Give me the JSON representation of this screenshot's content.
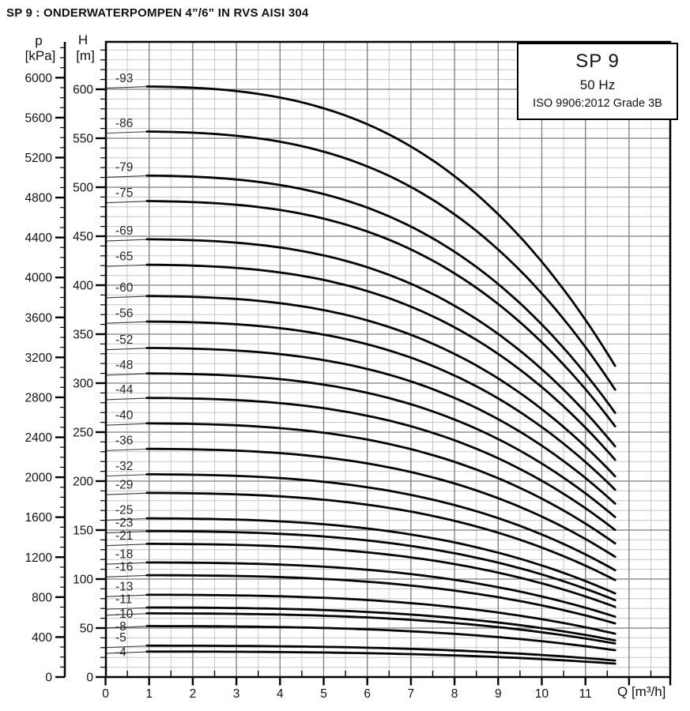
{
  "page": {
    "title": "SP 9 : ONDERWATERPOMPEN 4”/6” IN RVS AISI 304"
  },
  "chart_data": {
    "type": "line",
    "title": "SP 9 : ONDERWATERPOMPEN 4”/6” IN RVS AISI 304",
    "legend_box": {
      "model": "SP 9",
      "frequency": "50 Hz",
      "standard": "ISO 9906:2012 Grade 3B"
    },
    "x_axis": {
      "name": "Q",
      "unit_label": "Q [m³/h]",
      "tick_labels": [
        0,
        1,
        2,
        3,
        4,
        5,
        6,
        7,
        8,
        9,
        10,
        11
      ],
      "major_step": 1,
      "minor_step": 0.5,
      "range": [
        0,
        12.95
      ],
      "grid": true
    },
    "y_axis_h": {
      "name": "H",
      "unit": "[m]",
      "tick_labels": [
        0,
        50,
        100,
        150,
        200,
        250,
        300,
        350,
        400,
        450,
        500,
        550,
        600
      ],
      "major_step": 50,
      "minor_step": 10,
      "range": [
        0,
        648
      ],
      "grid": true
    },
    "y_axis_p": {
      "name": "p",
      "unit": "[kPa]",
      "tick_labels": [
        0,
        400,
        800,
        1200,
        1600,
        2000,
        2400,
        2800,
        3200,
        3600,
        4000,
        4400,
        4800,
        5200,
        5600,
        6000
      ],
      "major_step": 400,
      "minor_step": 100,
      "kpa_per_m": 9.80665
    },
    "series": [
      {
        "label": "-93",
        "shutoff_head_m": 603
      },
      {
        "label": "-86",
        "shutoff_head_m": 557
      },
      {
        "label": "-79",
        "shutoff_head_m": 512
      },
      {
        "label": "-75",
        "shutoff_head_m": 486
      },
      {
        "label": "-69",
        "shutoff_head_m": 447
      },
      {
        "label": "-65",
        "shutoff_head_m": 421
      },
      {
        "label": "-60",
        "shutoff_head_m": 389
      },
      {
        "label": "-56",
        "shutoff_head_m": 363
      },
      {
        "label": "-52",
        "shutoff_head_m": 336
      },
      {
        "label": "-48",
        "shutoff_head_m": 310
      },
      {
        "label": "-44",
        "shutoff_head_m": 285
      },
      {
        "label": "-40",
        "shutoff_head_m": 259
      },
      {
        "label": "-36",
        "shutoff_head_m": 233
      },
      {
        "label": "-32",
        "shutoff_head_m": 207
      },
      {
        "label": "-29",
        "shutoff_head_m": 188
      },
      {
        "label": "-25",
        "shutoff_head_m": 162
      },
      {
        "label": "-23",
        "shutoff_head_m": 149
      },
      {
        "label": "-21",
        "shutoff_head_m": 136
      },
      {
        "label": "-18",
        "shutoff_head_m": 117
      },
      {
        "label": "-16",
        "shutoff_head_m": 104
      },
      {
        "label": "-13",
        "shutoff_head_m": 84
      },
      {
        "label": "-11",
        "shutoff_head_m": 71
      },
      {
        "label": "-10",
        "shutoff_head_m": 65
      },
      {
        "label": "-8",
        "shutoff_head_m": 52
      },
      {
        "label": "-5",
        "shutoff_head_m": 32
      },
      {
        "label": "-4",
        "shutoff_head_m": 26
      }
    ],
    "curve_model": {
      "q_start": 0.95,
      "q_end": 11.68,
      "drop_coeff": 0.000297,
      "drop_exponent": 3,
      "head_ratio_at_end": 0.53,
      "formula": "H(Q) = H0 * (1 - 0.000297 * Q^3)"
    }
  }
}
